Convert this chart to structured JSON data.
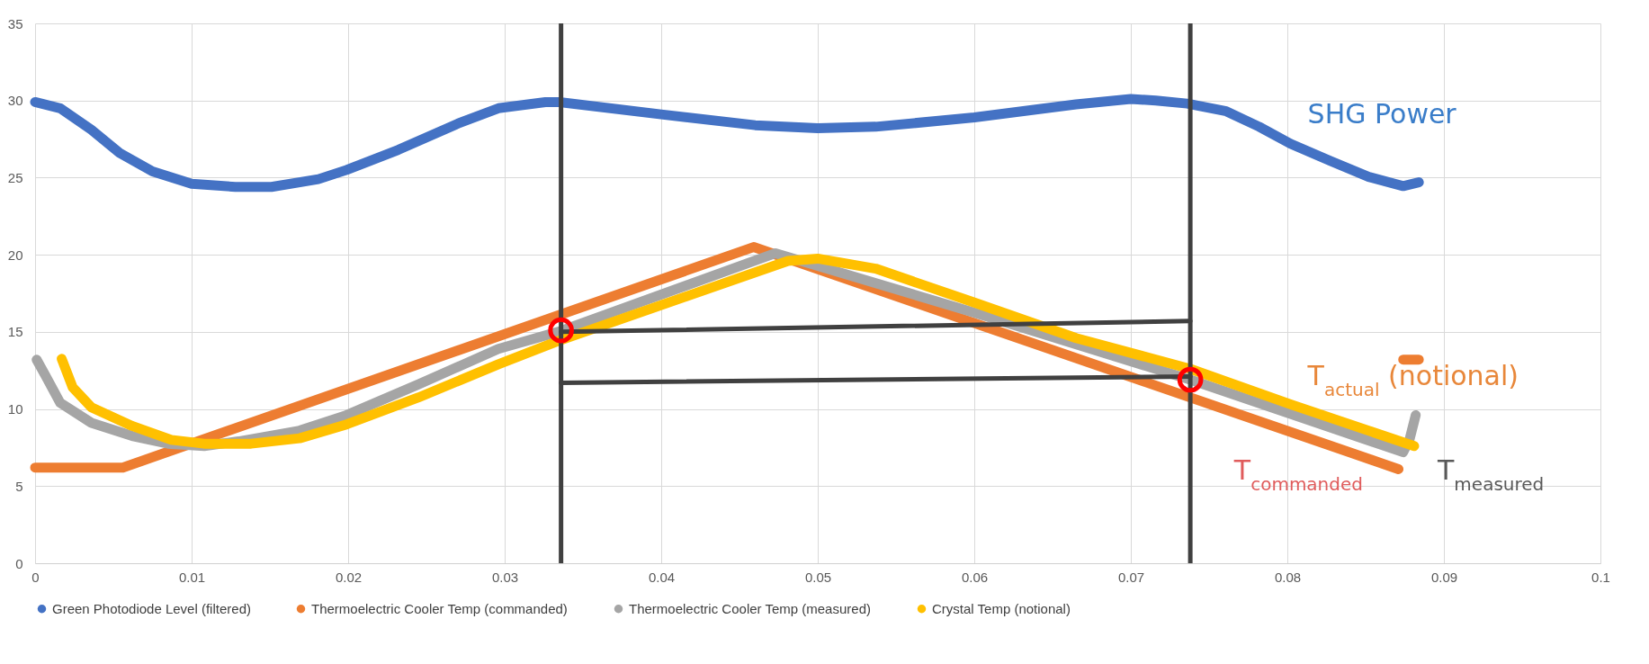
{
  "chart_data": {
    "type": "line",
    "xlim": [
      0,
      0.1
    ],
    "xticks": [
      0,
      0.01,
      0.02,
      0.03,
      0.04,
      0.05,
      0.06,
      0.07,
      0.08,
      0.09,
      0.1
    ],
    "ylim": [
      0,
      35
    ],
    "yticks": [
      0,
      5,
      10,
      15,
      20,
      25,
      30,
      35
    ],
    "grid": true,
    "legend": "bottom",
    "series": [
      {
        "name": "Green Photodiode Level (filtered)",
        "color": "#4472c4",
        "x": [
          0,
          0.0016,
          0.0036,
          0.0054,
          0.0075,
          0.01,
          0.0128,
          0.0151,
          0.0181,
          0.0199,
          0.0232,
          0.027,
          0.0296,
          0.0326,
          0.0335,
          0.04,
          0.046,
          0.05,
          0.0537,
          0.06,
          0.0665,
          0.07,
          0.0716,
          0.0736,
          0.0761,
          0.0782,
          0.0802,
          0.0827,
          0.0852,
          0.0874,
          0.0884
        ],
        "values": [
          29.9,
          29.5,
          28.1,
          26.6,
          25.4,
          24.6,
          24.4,
          24.4,
          24.9,
          25.5,
          26.8,
          28.5,
          29.5,
          29.9,
          29.9,
          29.1,
          28.4,
          28.2,
          28.3,
          28.9,
          29.75,
          30.1,
          30,
          29.8,
          29.3,
          28.3,
          27.2,
          26.1,
          25.05,
          24.45,
          24.7
        ]
      },
      {
        "name": "Thermoelectric Cooler Temp (commanded)",
        "color": "#ed7d31",
        "x": [
          0,
          0.0056,
          0.0459,
          0.0871,
          0.0872,
          0.0874,
          0.0884
        ],
        "values": [
          6.2,
          6.2,
          20.5,
          6.1,
          null,
          13.2,
          13.2
        ]
      },
      {
        "name": "Thermoelectric Cooler Temp (measured)",
        "color": "#a5a5a5",
        "x": [
          0.0001,
          0.0007,
          0.0016,
          0.0036,
          0.0062,
          0.0085,
          0.0108,
          0.013,
          0.0169,
          0.0199,
          0.0245,
          0.0296,
          0.0334,
          0.0473,
          0.06,
          0.0738,
          0.0874,
          0.0878,
          0.0882
        ],
        "values": [
          13.2,
          12.1,
          10.4,
          9.1,
          8.25,
          7.75,
          7.6,
          7.9,
          8.6,
          9.6,
          11.6,
          13.9,
          15,
          20.1,
          16.25,
          11.9,
          7.2,
          8,
          9.6
        ]
      },
      {
        "name": "Crystal Temp (notional)",
        "color": "#ffc000",
        "x": [
          0.0017,
          0.0024,
          0.0036,
          0.0062,
          0.0087,
          0.0108,
          0.0138,
          0.0169,
          0.0199,
          0.0245,
          0.0296,
          0.0334,
          0.0481,
          0.05,
          0.0537,
          0.06,
          0.0665,
          0.0738,
          0.0802,
          0.0881
        ],
        "values": [
          13.25,
          11.4,
          10.1,
          8.9,
          8,
          7.75,
          7.75,
          8.1,
          9,
          10.75,
          12.9,
          14.4,
          19.6,
          19.75,
          19.1,
          16.9,
          14.6,
          12.6,
          10.3,
          7.6
        ]
      },
      {
        "type": "line",
        "color": "#404040",
        "x": [
          0.0336,
          0.0738
        ],
        "values": [
          15,
          15.7
        ]
      },
      {
        "type": "line",
        "color": "#404040",
        "x": [
          0.0336,
          0.0738
        ],
        "values": [
          11.7,
          12.1
        ]
      },
      {
        "type": "scatter",
        "color": "#ff0000",
        "x": [
          0.0336,
          0.0738
        ],
        "values": [
          15.1,
          11.9
        ]
      }
    ],
    "ref_lines": [
      {
        "axis": "x",
        "value": 0.0336,
        "color": "#404040"
      },
      {
        "axis": "x",
        "value": 0.0738,
        "color": "#404040"
      }
    ],
    "annotations": [
      "SHG Power",
      "T$_{actual}$ (notional)",
      "T$_{commanded}$",
      "T$_{measured}$"
    ]
  }
}
